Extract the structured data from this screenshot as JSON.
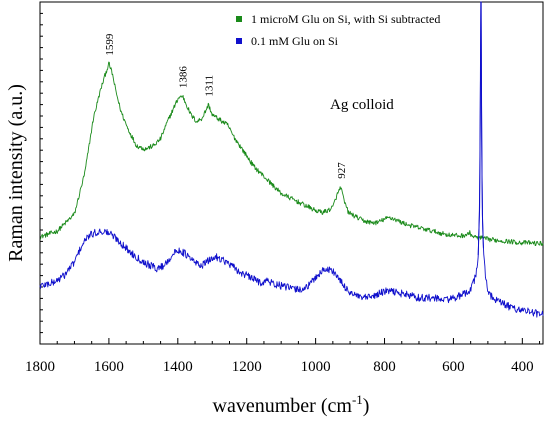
{
  "chart_data": {
    "type": "line",
    "xlabel": "wavenumber (cm",
    "xlabel_sup": "-1",
    "xlabel_close": ")",
    "ylabel": "Raman intensity (a.u.)",
    "x_reversed": true,
    "xlim": [
      1800,
      340
    ],
    "ylim": [
      0,
      100
    ],
    "y_tick_labels_shown": false,
    "grid": false,
    "legend_position": "top-right",
    "x_ticks": [
      {
        "value": 1800,
        "label": "1800"
      },
      {
        "value": 1600,
        "label": "1600"
      },
      {
        "value": 1400,
        "label": "1400"
      },
      {
        "value": 1200,
        "label": "1200"
      },
      {
        "value": 1000,
        "label": "1000"
      },
      {
        "value": 800,
        "label": "800"
      },
      {
        "value": 600,
        "label": "600"
      },
      {
        "value": 400,
        "label": "400"
      }
    ],
    "annotation": "Ag colloid",
    "series": [
      {
        "name": "1 microM Glu on Si, with Si subtracted",
        "color": "#1a8a1a",
        "points": [
          [
            1800,
            31.3
          ],
          [
            1750,
            33.0
          ],
          [
            1700,
            38.0
          ],
          [
            1670,
            50.0
          ],
          [
            1645,
            66.0
          ],
          [
            1625,
            74.0
          ],
          [
            1610,
            79.0
          ],
          [
            1600,
            82.0
          ],
          [
            1590,
            79.0
          ],
          [
            1580,
            74.0
          ],
          [
            1565,
            68.0
          ],
          [
            1545,
            63.0
          ],
          [
            1520,
            58.0
          ],
          [
            1495,
            57.0
          ],
          [
            1470,
            58.0
          ],
          [
            1450,
            60.0
          ],
          [
            1430,
            65.0
          ],
          [
            1412,
            69.0
          ],
          [
            1398,
            72.0
          ],
          [
            1386,
            72.5
          ],
          [
            1375,
            70.0
          ],
          [
            1362,
            67.0
          ],
          [
            1345,
            65.0
          ],
          [
            1330,
            66.0
          ],
          [
            1320,
            68.0
          ],
          [
            1311,
            70.0
          ],
          [
            1300,
            67.0
          ],
          [
            1285,
            66.0
          ],
          [
            1270,
            65.0
          ],
          [
            1255,
            64.0
          ],
          [
            1240,
            61.0
          ],
          [
            1220,
            58.0
          ],
          [
            1200,
            55.0
          ],
          [
            1180,
            52.0
          ],
          [
            1160,
            50.0
          ],
          [
            1140,
            48.0
          ],
          [
            1120,
            46.0
          ],
          [
            1100,
            44.0
          ],
          [
            1080,
            43.0
          ],
          [
            1060,
            42.0
          ],
          [
            1040,
            41.0
          ],
          [
            1020,
            40.0
          ],
          [
            1000,
            39.0
          ],
          [
            980,
            38.5
          ],
          [
            965,
            39.0
          ],
          [
            950,
            40.0
          ],
          [
            940,
            43.0
          ],
          [
            927,
            46.0
          ],
          [
            918,
            42.0
          ],
          [
            905,
            38.5
          ],
          [
            880,
            37.0
          ],
          [
            860,
            36.0
          ],
          [
            840,
            35.5
          ],
          [
            820,
            35.5
          ],
          [
            800,
            36.5
          ],
          [
            785,
            37.0
          ],
          [
            770,
            36.5
          ],
          [
            750,
            35.5
          ],
          [
            720,
            34.5
          ],
          [
            700,
            34.0
          ],
          [
            680,
            33.5
          ],
          [
            660,
            33.0
          ],
          [
            640,
            32.5
          ],
          [
            620,
            32.0
          ],
          [
            600,
            31.8
          ],
          [
            580,
            31.6
          ],
          [
            560,
            32.0
          ],
          [
            552,
            32.5
          ],
          [
            545,
            31.5
          ],
          [
            530,
            31.0
          ],
          [
            520,
            31.0
          ],
          [
            510,
            30.8
          ],
          [
            500,
            30.6
          ],
          [
            480,
            30.4
          ],
          [
            460,
            30.2
          ],
          [
            440,
            30.0
          ],
          [
            420,
            29.8
          ],
          [
            400,
            29.6
          ],
          [
            380,
            29.6
          ],
          [
            360,
            29.4
          ],
          [
            340,
            29.4
          ]
        ]
      },
      {
        "name": "0.1 mM Glu on Si",
        "color": "#1010cc",
        "points": [
          [
            1800,
            17.0
          ],
          [
            1760,
            18.0
          ],
          [
            1730,
            20.0
          ],
          [
            1700,
            24.0
          ],
          [
            1680,
            28.5
          ],
          [
            1660,
            31.5
          ],
          [
            1640,
            32.5
          ],
          [
            1620,
            33.0
          ],
          [
            1600,
            32.5
          ],
          [
            1580,
            31.0
          ],
          [
            1560,
            29.0
          ],
          [
            1540,
            27.0
          ],
          [
            1520,
            25.5
          ],
          [
            1500,
            24.0
          ],
          [
            1480,
            23.0
          ],
          [
            1460,
            22.0
          ],
          [
            1440,
            23.0
          ],
          [
            1420,
            25.5
          ],
          [
            1405,
            27.0
          ],
          [
            1395,
            27.5
          ],
          [
            1380,
            26.5
          ],
          [
            1365,
            25.0
          ],
          [
            1345,
            23.5
          ],
          [
            1330,
            23.0
          ],
          [
            1315,
            24.0
          ],
          [
            1300,
            25.0
          ],
          [
            1290,
            25.5
          ],
          [
            1275,
            25.0
          ],
          [
            1260,
            24.0
          ],
          [
            1240,
            22.5
          ],
          [
            1220,
            21.0
          ],
          [
            1200,
            20.0
          ],
          [
            1180,
            19.0
          ],
          [
            1160,
            18.0
          ],
          [
            1140,
            18.5
          ],
          [
            1120,
            17.5
          ],
          [
            1100,
            17.0
          ],
          [
            1080,
            16.5
          ],
          [
            1060,
            16.0
          ],
          [
            1040,
            16.0
          ],
          [
            1020,
            17.0
          ],
          [
            1000,
            19.5
          ],
          [
            985,
            21.0
          ],
          [
            970,
            22.0
          ],
          [
            955,
            21.5
          ],
          [
            945,
            21.0
          ],
          [
            930,
            18.5
          ],
          [
            910,
            16.0
          ],
          [
            890,
            14.5
          ],
          [
            870,
            13.5
          ],
          [
            850,
            13.5
          ],
          [
            830,
            14.0
          ],
          [
            810,
            15.0
          ],
          [
            790,
            15.5
          ],
          [
            775,
            15.3
          ],
          [
            760,
            15.0
          ],
          [
            740,
            14.5
          ],
          [
            720,
            14.0
          ],
          [
            700,
            13.5
          ],
          [
            680,
            13.5
          ],
          [
            660,
            13.5
          ],
          [
            640,
            13.0
          ],
          [
            620,
            13.0
          ],
          [
            600,
            13.5
          ],
          [
            580,
            14.0
          ],
          [
            560,
            15.0
          ],
          [
            545,
            17.0
          ],
          [
            535,
            20.0
          ],
          [
            528,
            26.0
          ],
          [
            524,
            40.0
          ],
          [
            522,
            70.0
          ],
          [
            520.5,
            100.0
          ],
          [
            519.5,
            100.0
          ],
          [
            518,
            60.0
          ],
          [
            516,
            38.0
          ],
          [
            513,
            28.0
          ],
          [
            509,
            22.0
          ],
          [
            503,
            17.0
          ],
          [
            495,
            14.5
          ],
          [
            480,
            13.0
          ],
          [
            460,
            12.0
          ],
          [
            440,
            11.0
          ],
          [
            420,
            10.3
          ],
          [
            400,
            10.0
          ],
          [
            380,
            9.5
          ],
          [
            360,
            9.0
          ],
          [
            340,
            8.5
          ]
        ]
      }
    ],
    "peak_labels": [
      {
        "x": 1599,
        "y": 82.0,
        "label": "1599"
      },
      {
        "x": 1386,
        "y": 72.5,
        "label": "1386"
      },
      {
        "x": 1311,
        "y": 70.0,
        "label": "1311"
      },
      {
        "x": 927,
        "y": 46.0,
        "label": "927"
      }
    ]
  }
}
